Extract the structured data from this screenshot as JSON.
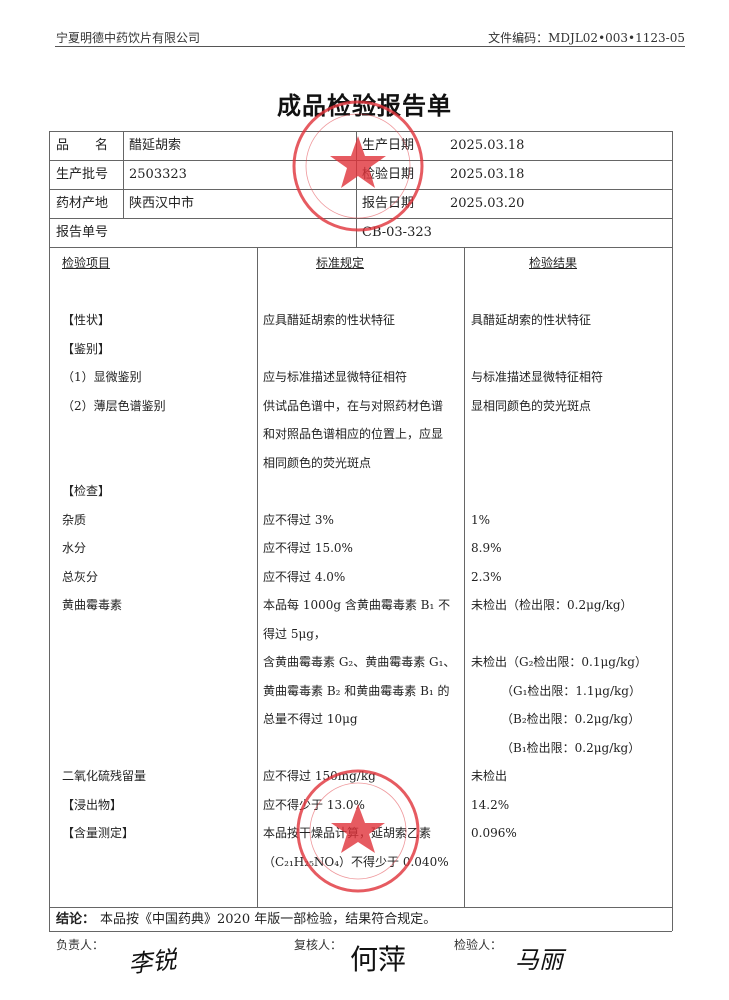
{
  "header": {
    "company": "宁夏明德中药饮片有限公司",
    "doc_code": "文件编码：MDJL02•003•1123-05"
  },
  "title": "成品检验报告单",
  "info": {
    "product_name_label": "品　　名",
    "product_name": "醋延胡索",
    "production_date_label": "生产日期",
    "production_date": "2025.03.18",
    "batch_label": "生产批号",
    "batch": "2503323",
    "inspection_date_label": "检验日期",
    "inspection_date": "2025.03.18",
    "origin_label": "药材产地",
    "origin": "陕西汉中市",
    "report_date_label": "报告日期",
    "report_date": "2025.03.20",
    "report_no_label": "报告单号",
    "report_no": "CB-03-323"
  },
  "columns": {
    "item": "检验项目",
    "standard": "标准规定",
    "result": "检验结果"
  },
  "rows": [
    {
      "item": "",
      "standard": "",
      "result": ""
    },
    {
      "item": "",
      "standard": "",
      "result": ""
    },
    {
      "item": "【性状】",
      "standard": "应具醋延胡索的性状特征",
      "result": "具醋延胡索的性状特征"
    },
    {
      "item": "【鉴别】",
      "standard": "",
      "result": ""
    },
    {
      "item": "（1）显微鉴别",
      "standard": "应与标准描述显微特征相符",
      "result": "与标准描述显微特征相符"
    },
    {
      "item": "（2）薄层色谱鉴别",
      "standard": "供试品色谱中，在与对照药材色谱",
      "result": "显相同颜色的荧光斑点"
    },
    {
      "item": "",
      "standard": "和对照品色谱相应的位置上，应显",
      "result": ""
    },
    {
      "item": "",
      "standard": "相同颜色的荧光斑点",
      "result": ""
    },
    {
      "item": "【检查】",
      "standard": "",
      "result": ""
    },
    {
      "item": "杂质",
      "standard": "应不得过 3%",
      "result": "1%"
    },
    {
      "item": "水分",
      "standard": "应不得过 15.0%",
      "result": "8.9%"
    },
    {
      "item": "总灰分",
      "standard": "应不得过 4.0%",
      "result": "2.3%"
    },
    {
      "item": "黄曲霉毒素",
      "standard": "本品每 1000g 含黄曲霉毒素 B₁ 不",
      "result": "未检出（检出限：0.2μg/kg）"
    },
    {
      "item": "",
      "standard": "得过 5μg，",
      "result": ""
    },
    {
      "item": "",
      "standard": "含黄曲霉毒素 G₂、黄曲霉毒素 G₁、",
      "result": "未检出（G₂检出限：0.1μg/kg）"
    },
    {
      "item": "",
      "standard": "黄曲霉毒素 B₂ 和黄曲霉毒素 B₁ 的",
      "result": "　　　（G₁检出限：1.1μg/kg）"
    },
    {
      "item": "",
      "standard": "总量不得过 10μg",
      "result": "　　　（B₂检出限：0.2μg/kg）"
    },
    {
      "item": "",
      "standard": "",
      "result": "　　　（B₁检出限：0.2μg/kg）"
    },
    {
      "item": "二氧化硫残留量",
      "standard": "应不得过 150mg/kg",
      "result": "未检出"
    },
    {
      "item": "【浸出物】",
      "standard": "应不得少于 13.0%",
      "result": "14.2%"
    },
    {
      "item": "【含量测定】",
      "standard": "本品按干燥品计算，延胡索乙素",
      "result": "0.096%"
    },
    {
      "item": "",
      "standard": "（C₂₁H₂₅NO₄）不得少于 0.040%",
      "result": ""
    }
  ],
  "conclusion": {
    "label": "结论：",
    "text": "本品按《中国药典》2020 年版一部检验，结果符合规定。"
  },
  "signatures": {
    "responsible_label": "负责人：",
    "responsible": "李锐",
    "reviewer_label": "复核人：",
    "reviewer": "何萍",
    "inspector_label": "检验人：",
    "inspector": "马丽"
  },
  "stamps": [
    {
      "text": "宁夏明德中药饮片有限公司 质量部",
      "color": "#e0323a"
    },
    {
      "text": "宁夏明德中药饮片有限公司 质检专用章",
      "color": "#e0323a"
    }
  ]
}
